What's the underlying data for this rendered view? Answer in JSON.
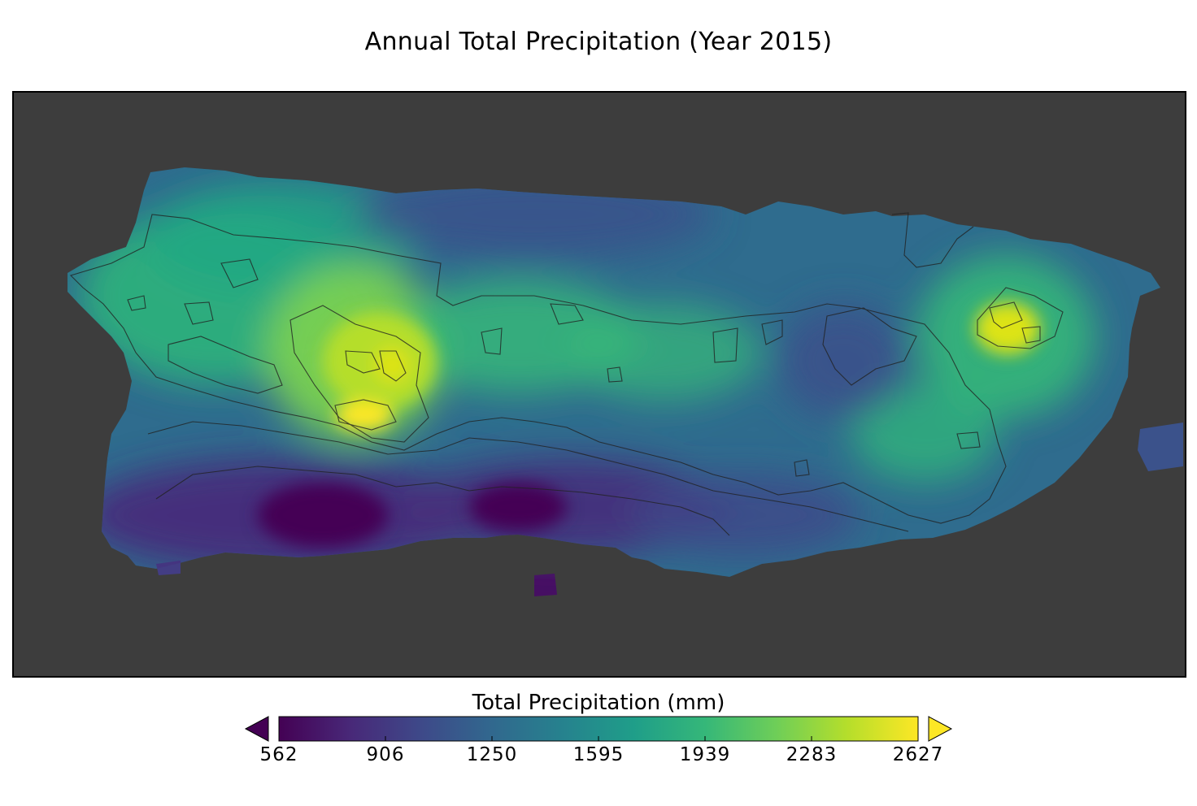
{
  "title": "Annual Total Precipitation (Year 2015)",
  "map": {
    "background": "#3d3d3d",
    "region": "Puerto Rico",
    "colormap": "viridis",
    "contour_color": "#222222"
  },
  "colorbar": {
    "label": "Total Precipitation (mm)",
    "min": 562,
    "max": 2627,
    "extend": "both",
    "ticks": [
      "562",
      "906",
      "1250",
      "1595",
      "1939",
      "2283",
      "2627"
    ],
    "colors": [
      "#440154",
      "#482878",
      "#3e4989",
      "#31688e",
      "#26828e",
      "#1f9e89",
      "#35b779",
      "#6ece58",
      "#b5de2b",
      "#fde725"
    ]
  }
}
